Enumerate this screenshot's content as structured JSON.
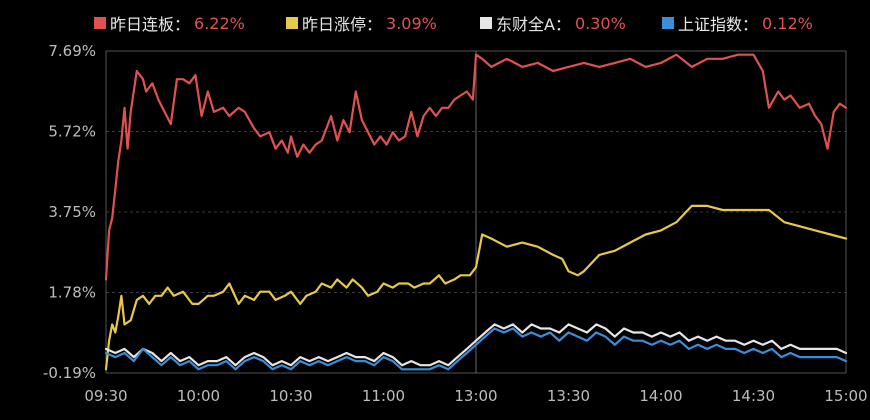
{
  "legend": [
    {
      "label": "昨日连板：",
      "value": "6.22%",
      "color": "#e05252",
      "value_color": "#e05252"
    },
    {
      "label": "昨日涨停：",
      "value": "3.09%",
      "color": "#e8c84a",
      "value_color": "#e05252"
    },
    {
      "label": "东财全A：",
      "value": "0.30%",
      "color": "#e6e6e6",
      "value_color": "#e05252"
    },
    {
      "label": "上证指数：",
      "value": "0.12%",
      "color": "#3a8fd8",
      "value_color": "#e05252"
    }
  ],
  "chart_data": {
    "type": "line",
    "title": "",
    "xlabel": "",
    "ylabel": "",
    "ylim": [
      -0.19,
      7.69
    ],
    "yticks": [
      "7.69%",
      "5.72%",
      "3.75%",
      "1.78%",
      "-0.19%"
    ],
    "ytick_values": [
      7.69,
      5.72,
      3.75,
      1.78,
      -0.19
    ],
    "xticks": [
      "09:30",
      "10:00",
      "10:30",
      "11:00",
      "13:00",
      "13:30",
      "14:00",
      "14:30",
      "15:00"
    ],
    "x_minutes": [
      0,
      30,
      60,
      90,
      120,
      150,
      180,
      210,
      240
    ],
    "grid": true,
    "legend_position": "top",
    "series": [
      {
        "name": "昨日连板",
        "color": "#e05252",
        "x": [
          0,
          1,
          2,
          3,
          4,
          5,
          6,
          7,
          8,
          10,
          12,
          13,
          15,
          17,
          19,
          21,
          23,
          25,
          27,
          29,
          31,
          33,
          35,
          38,
          40,
          43,
          45,
          48,
          50,
          53,
          55,
          57,
          59,
          60,
          62,
          64,
          66,
          68,
          70,
          73,
          75,
          77,
          79,
          81,
          83,
          85,
          87,
          89,
          91,
          93,
          95,
          97,
          99,
          101,
          103,
          105,
          107,
          109,
          111,
          113,
          115,
          117,
          119,
          120,
          122,
          125,
          130,
          135,
          140,
          145,
          150,
          155,
          160,
          165,
          170,
          175,
          180,
          185,
          190,
          195,
          200,
          205,
          210,
          213,
          215,
          218,
          220,
          222,
          225,
          228,
          230,
          232,
          234,
          236,
          238,
          240
        ],
        "values": [
          2.1,
          3.3,
          3.6,
          4.3,
          5.0,
          5.5,
          6.3,
          5.3,
          6.2,
          7.2,
          7.0,
          6.7,
          6.9,
          6.5,
          6.2,
          5.9,
          7.0,
          7.0,
          6.9,
          7.1,
          6.1,
          6.7,
          6.2,
          6.3,
          6.1,
          6.3,
          6.2,
          5.8,
          5.6,
          5.7,
          5.3,
          5.5,
          5.2,
          5.6,
          5.1,
          5.4,
          5.2,
          5.4,
          5.5,
          6.1,
          5.5,
          6.0,
          5.7,
          6.7,
          6.0,
          5.7,
          5.4,
          5.6,
          5.4,
          5.7,
          5.5,
          5.6,
          6.2,
          5.6,
          6.1,
          6.3,
          6.1,
          6.3,
          6.3,
          6.5,
          6.6,
          6.7,
          6.5,
          7.6,
          7.5,
          7.3,
          7.5,
          7.3,
          7.4,
          7.2,
          7.3,
          7.4,
          7.3,
          7.4,
          7.5,
          7.3,
          7.4,
          7.6,
          7.3,
          7.5,
          7.5,
          7.6,
          7.6,
          7.2,
          6.3,
          6.7,
          6.5,
          6.6,
          6.3,
          6.4,
          6.1,
          5.9,
          5.3,
          6.2,
          6.4,
          6.3
        ]
      },
      {
        "name": "昨日涨停",
        "color": "#e8c84a",
        "x": [
          0,
          1,
          2,
          3,
          4,
          5,
          6,
          8,
          10,
          12,
          14,
          16,
          18,
          20,
          22,
          25,
          28,
          30,
          33,
          35,
          38,
          40,
          43,
          45,
          48,
          50,
          53,
          55,
          58,
          60,
          63,
          65,
          68,
          70,
          73,
          75,
          78,
          80,
          83,
          85,
          88,
          90,
          93,
          95,
          98,
          100,
          103,
          105,
          108,
          110,
          113,
          115,
          118,
          119,
          120,
          122,
          125,
          130,
          135,
          140,
          145,
          148,
          150,
          153,
          155,
          160,
          165,
          170,
          175,
          180,
          185,
          190,
          195,
          200,
          205,
          210,
          215,
          220,
          225,
          230,
          235,
          240
        ],
        "values": [
          -0.1,
          0.6,
          1.0,
          0.8,
          1.2,
          1.7,
          1.0,
          1.1,
          1.6,
          1.7,
          1.5,
          1.7,
          1.7,
          1.9,
          1.7,
          1.8,
          1.5,
          1.5,
          1.7,
          1.7,
          1.8,
          2.0,
          1.5,
          1.7,
          1.6,
          1.8,
          1.8,
          1.6,
          1.7,
          1.8,
          1.5,
          1.7,
          1.8,
          2.0,
          1.9,
          2.1,
          1.9,
          2.1,
          1.9,
          1.7,
          1.8,
          2.0,
          1.9,
          2.0,
          2.0,
          1.9,
          2.0,
          2.0,
          2.2,
          2.0,
          2.1,
          2.2,
          2.2,
          2.3,
          2.4,
          3.2,
          3.1,
          2.9,
          3.0,
          2.9,
          2.7,
          2.6,
          2.3,
          2.2,
          2.3,
          2.7,
          2.8,
          3.0,
          3.2,
          3.3,
          3.5,
          3.9,
          3.9,
          3.8,
          3.8,
          3.8,
          3.8,
          3.5,
          3.4,
          3.3,
          3.2,
          3.1
        ]
      },
      {
        "name": "东财全A",
        "color": "#e6e6e6",
        "x": [
          0,
          3,
          6,
          9,
          12,
          15,
          18,
          21,
          24,
          27,
          30,
          33,
          36,
          39,
          42,
          45,
          48,
          51,
          54,
          57,
          60,
          63,
          66,
          69,
          72,
          75,
          78,
          81,
          84,
          87,
          90,
          93,
          96,
          99,
          102,
          105,
          108,
          111,
          114,
          117,
          120,
          123,
          126,
          129,
          132,
          135,
          138,
          141,
          144,
          147,
          150,
          153,
          156,
          159,
          162,
          165,
          168,
          171,
          174,
          177,
          180,
          183,
          186,
          189,
          192,
          195,
          198,
          201,
          204,
          207,
          210,
          213,
          216,
          219,
          222,
          225,
          228,
          231,
          234,
          237,
          240
        ],
        "values": [
          0.4,
          0.3,
          0.4,
          0.2,
          0.4,
          0.3,
          0.1,
          0.3,
          0.1,
          0.2,
          0.0,
          0.1,
          0.1,
          0.2,
          0.0,
          0.2,
          0.3,
          0.2,
          0.0,
          0.1,
          0.0,
          0.2,
          0.1,
          0.2,
          0.1,
          0.2,
          0.3,
          0.2,
          0.2,
          0.1,
          0.3,
          0.2,
          0.0,
          0.1,
          0.0,
          0.0,
          0.1,
          0.0,
          0.2,
          0.4,
          0.6,
          0.8,
          1.0,
          0.9,
          1.0,
          0.8,
          1.0,
          0.9,
          0.9,
          0.8,
          1.0,
          0.9,
          0.8,
          1.0,
          0.9,
          0.7,
          0.9,
          0.8,
          0.8,
          0.7,
          0.8,
          0.7,
          0.8,
          0.6,
          0.7,
          0.6,
          0.7,
          0.6,
          0.6,
          0.5,
          0.6,
          0.5,
          0.6,
          0.4,
          0.5,
          0.4,
          0.4,
          0.4,
          0.4,
          0.4,
          0.3
        ]
      },
      {
        "name": "上证指数",
        "color": "#3a8fd8",
        "x": [
          0,
          3,
          6,
          9,
          12,
          15,
          18,
          21,
          24,
          27,
          30,
          33,
          36,
          39,
          42,
          45,
          48,
          51,
          54,
          57,
          60,
          63,
          66,
          69,
          72,
          75,
          78,
          81,
          84,
          87,
          90,
          93,
          96,
          99,
          102,
          105,
          108,
          111,
          114,
          117,
          120,
          123,
          126,
          129,
          132,
          135,
          138,
          141,
          144,
          147,
          150,
          153,
          156,
          159,
          162,
          165,
          168,
          171,
          174,
          177,
          180,
          183,
          186,
          189,
          192,
          195,
          198,
          201,
          204,
          207,
          210,
          213,
          216,
          219,
          222,
          225,
          228,
          231,
          234,
          237,
          240
        ],
        "values": [
          0.3,
          0.2,
          0.3,
          0.1,
          0.4,
          0.2,
          0.0,
          0.2,
          0.0,
          0.1,
          -0.1,
          0.0,
          0.0,
          0.1,
          -0.1,
          0.1,
          0.2,
          0.1,
          -0.1,
          0.0,
          -0.1,
          0.1,
          0.0,
          0.1,
          0.0,
          0.1,
          0.2,
          0.1,
          0.1,
          0.0,
          0.2,
          0.1,
          -0.1,
          -0.1,
          -0.1,
          -0.1,
          0.0,
          -0.1,
          0.1,
          0.3,
          0.5,
          0.7,
          0.9,
          0.8,
          0.9,
          0.7,
          0.8,
          0.7,
          0.8,
          0.6,
          0.8,
          0.7,
          0.6,
          0.8,
          0.7,
          0.5,
          0.7,
          0.6,
          0.6,
          0.5,
          0.6,
          0.5,
          0.6,
          0.4,
          0.5,
          0.4,
          0.5,
          0.4,
          0.4,
          0.3,
          0.4,
          0.3,
          0.4,
          0.2,
          0.3,
          0.2,
          0.2,
          0.2,
          0.2,
          0.2,
          0.1
        ]
      }
    ]
  }
}
